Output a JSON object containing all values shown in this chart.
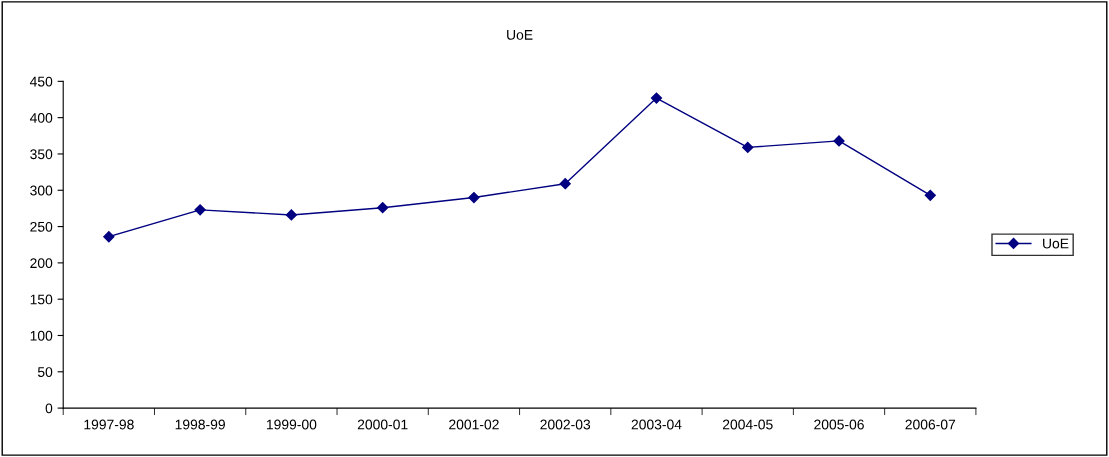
{
  "chart_data": {
    "type": "line",
    "title": "UoE",
    "categories": [
      "1997-98",
      "1998-99",
      "1999-00",
      "2000-01",
      "2001-02",
      "2002-03",
      "2003-04",
      "2004-05",
      "2005-06",
      "2006-07"
    ],
    "series": [
      {
        "name": "UoE",
        "color": "#000080",
        "values": [
          236,
          273,
          266,
          276,
          290,
          309,
          427,
          359,
          368,
          293
        ]
      }
    ],
    "ylim": [
      0,
      450
    ],
    "yticks": [
      0,
      50,
      100,
      150,
      200,
      250,
      300,
      350,
      400,
      450
    ],
    "grid": false,
    "legend": "right",
    "marker": "diamond",
    "line_style": "solid"
  }
}
